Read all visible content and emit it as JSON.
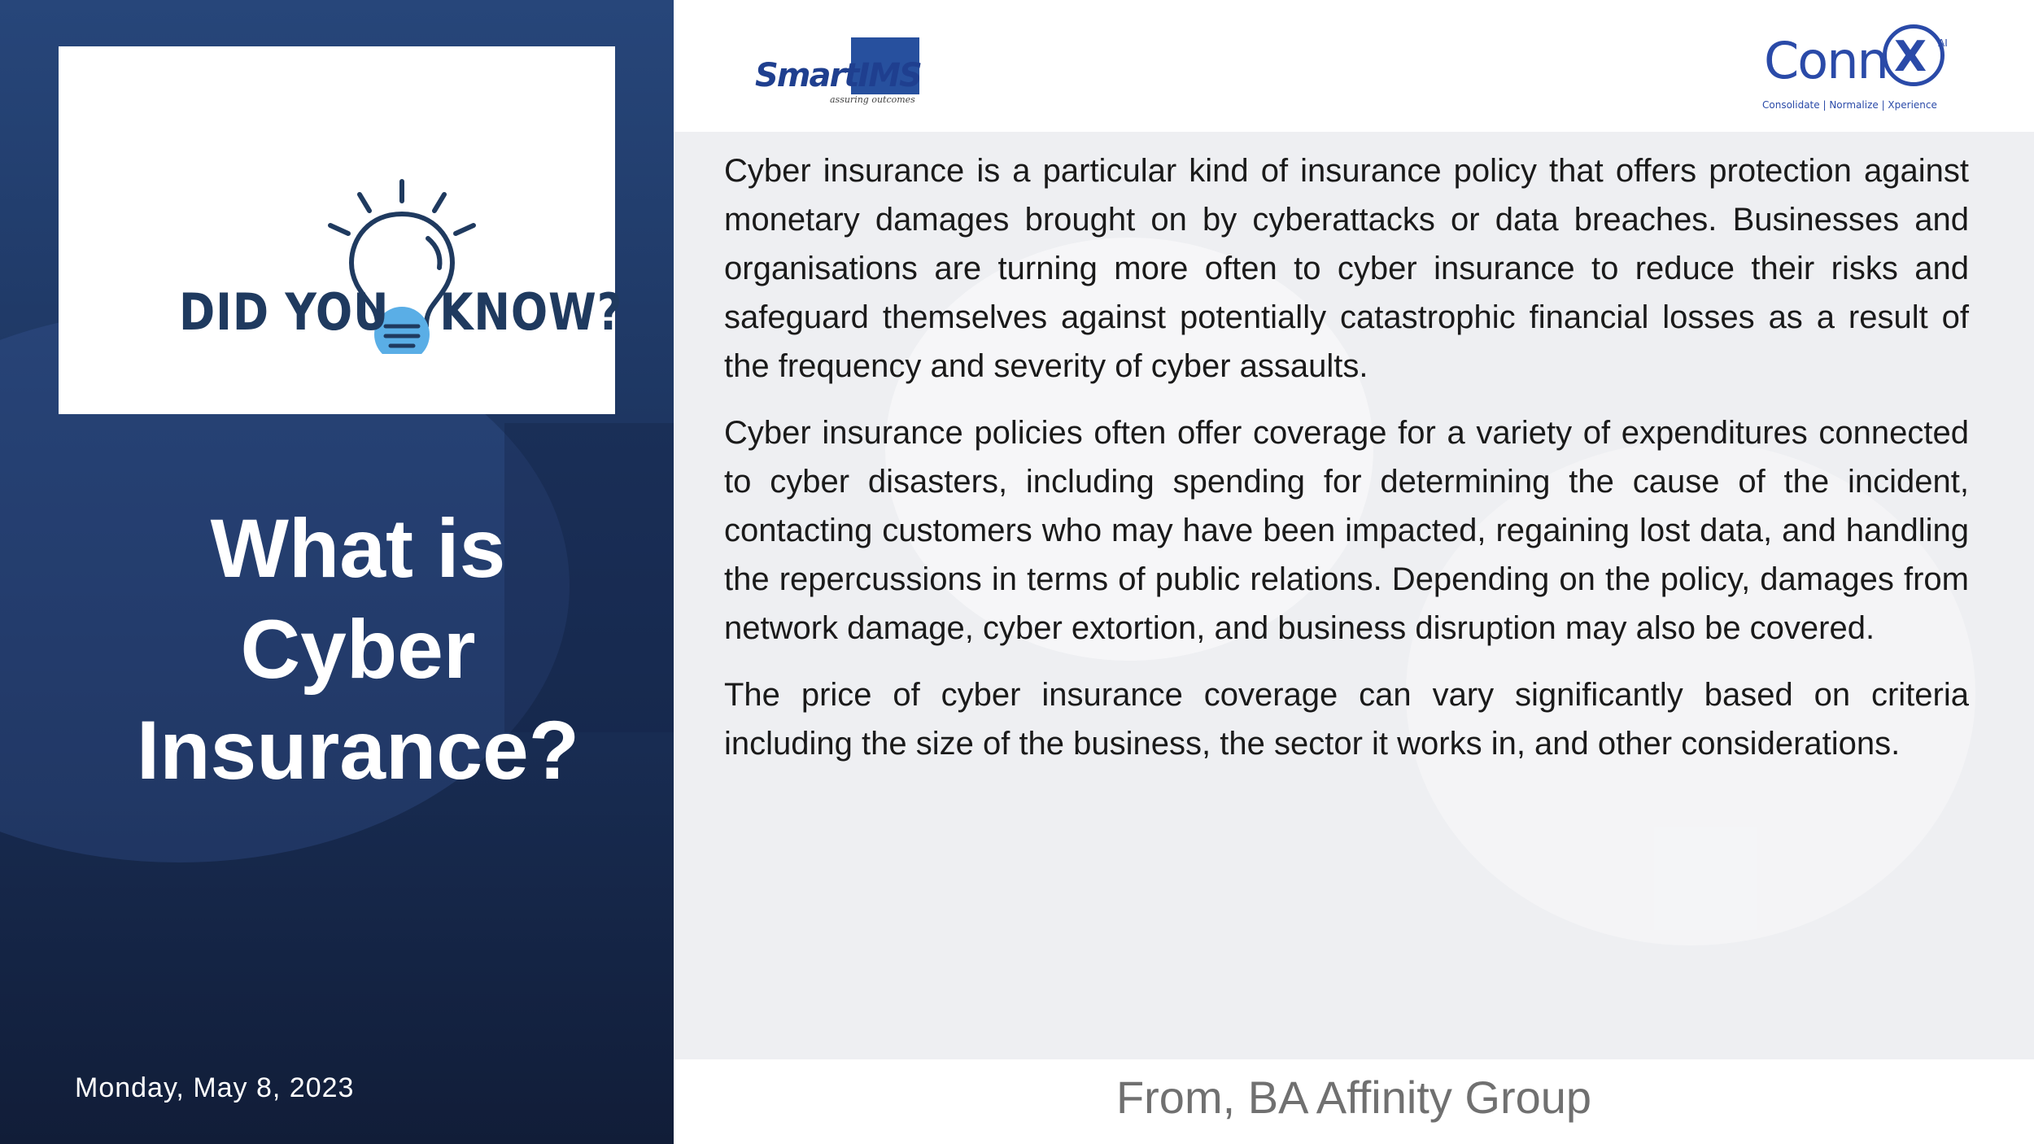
{
  "sidebar": {
    "card_text_left": "DID YOU",
    "card_text_right": "KNOW?",
    "title_lines": [
      "What is",
      "Cyber",
      "Insurance?"
    ],
    "date": "Monday, May 8, 2023"
  },
  "header": {
    "logo_smart": "SmartIMS",
    "logo_smart_tagline": "assuring outcomes",
    "logo_connx": "Conn",
    "logo_connx_x": "X",
    "logo_connx_ai": "AI",
    "logo_connx_tagline": "Consolidate | Normalize | Xperience"
  },
  "main": {
    "paragraphs": [
      "Cyber insurance is a particular kind of insurance policy that offers protection against monetary damages brought on by cyberattacks or data breaches. Businesses and organisations are turning more often to cyber insurance to reduce their risks and safeguard themselves against potentially catastrophic financial losses as a result of the frequency and severity of cyber assaults.",
      "Cyber insurance policies often offer coverage for a variety of expenditures connected to cyber disasters, including spending for determining the cause of the incident, contacting customers who may have been impacted, regaining lost data, and handling the repercussions in terms of public relations. Depending on the policy, damages from network damage, cyber extortion, and business disruption may also be covered.",
      "The price of cyber insurance coverage can vary significantly based on criteria including the size of the business, the sector it works in, and other considerations."
    ]
  },
  "footer": {
    "text": "From, BA Affinity Group"
  },
  "colors": {
    "sidebar_top": "#27467a",
    "sidebar_bottom": "#111d38",
    "brand_blue": "#2a4aa8",
    "dyk_text": "#1f3a5f",
    "bulb_fill": "#5aaee6"
  },
  "icons": {
    "card_icon": "lightbulb-icon"
  }
}
